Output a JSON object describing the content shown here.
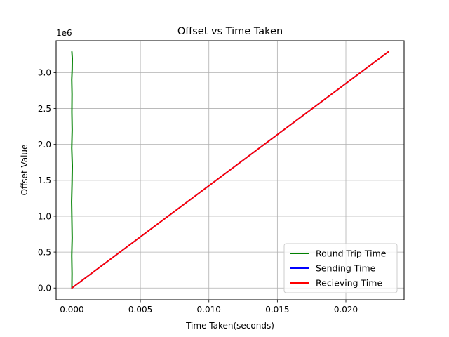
{
  "chart_data": {
    "type": "line",
    "title": "Offset vs Time Taken",
    "xlabel": "Time Taken(seconds)",
    "ylabel": "Offset Value",
    "y_scale_label": "1e6",
    "xlim": [
      -0.00115,
      0.02425
    ],
    "ylim": [
      -0.164,
      3.444
    ],
    "x_ticks": [
      0,
      0.005,
      0.01,
      0.015,
      0.02
    ],
    "x_tick_labels": [
      "0.000",
      "0.005",
      "0.010",
      "0.015",
      "0.020"
    ],
    "y_ticks": [
      0,
      0.5,
      1.0,
      1.5,
      2.0,
      2.5,
      3.0
    ],
    "y_tick_labels": [
      "0.0",
      "0.5",
      "1.0",
      "1.5",
      "2.0",
      "2.5",
      "3.0"
    ],
    "grid": true,
    "legend_position": "lower right",
    "series": [
      {
        "name": "Round Trip Time",
        "color": "#008000",
        "x": [
          0.0,
          1e-05,
          -1e-05,
          2e-05,
          0.0,
          -2e-05,
          1e-05,
          3e-05,
          -1e-05,
          2e-05,
          0.0,
          1e-05,
          -1e-05,
          2e-05,
          3e-05,
          0.0
        ],
        "y": [
          0.0,
          0.2,
          0.45,
          0.7,
          0.95,
          1.2,
          1.45,
          1.7,
          1.95,
          2.2,
          2.45,
          2.7,
          2.9,
          3.05,
          3.2,
          3.29
        ]
      },
      {
        "name": "Sending Time",
        "color": "#0000ff",
        "x": [
          0.0,
          0.0231
        ],
        "y": [
          0.0,
          3.29
        ]
      },
      {
        "name": "Recieving Time",
        "color": "#ff0000",
        "x": [
          0.0,
          0.0231
        ],
        "y": [
          0.0,
          3.29
        ]
      }
    ]
  }
}
